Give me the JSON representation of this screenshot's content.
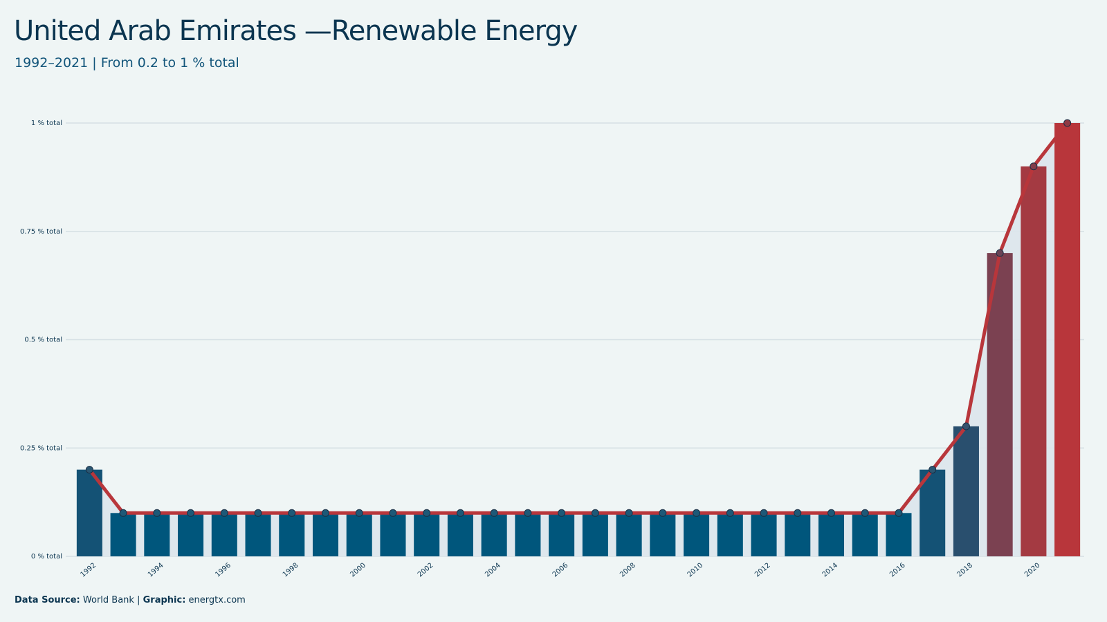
{
  "header": {
    "title": "United Arab Emirates —Renewable Energy",
    "subtitle": "1992–2021 | From 0.2 to 1 % total"
  },
  "footer": {
    "source_label": "Data Source:",
    "source_value": "World Bank",
    "separator": "|",
    "graphic_label": "Graphic:",
    "graphic_value": "energtx.com"
  },
  "colors": {
    "background": "#eff5f5",
    "bar_base": "#00567c",
    "bar_high": "#b8363b",
    "line": "#b8363b",
    "marker": "#1d5978",
    "grid": "#d6e0e4",
    "band": "#dce6ec"
  },
  "chart_data": {
    "type": "bar",
    "x": [
      1992,
      1993,
      1994,
      1995,
      1996,
      1997,
      1998,
      1999,
      2000,
      2001,
      2002,
      2003,
      2004,
      2005,
      2006,
      2007,
      2008,
      2009,
      2010,
      2011,
      2012,
      2013,
      2014,
      2015,
      2016,
      2017,
      2018,
      2019,
      2020,
      2021
    ],
    "values": [
      0.2,
      0.1,
      0.1,
      0.1,
      0.1,
      0.1,
      0.1,
      0.1,
      0.1,
      0.1,
      0.1,
      0.1,
      0.1,
      0.1,
      0.1,
      0.1,
      0.1,
      0.1,
      0.1,
      0.1,
      0.1,
      0.1,
      0.1,
      0.1,
      0.1,
      0.2,
      0.3,
      0.7,
      0.9,
      1.0
    ],
    "x_tick_labels": [
      "1992",
      "1994",
      "1996",
      "1998",
      "2000",
      "2002",
      "2004",
      "2006",
      "2008",
      "2010",
      "2012",
      "2014",
      "2016",
      "2018",
      "2020"
    ],
    "y_ticks": [
      0,
      0.25,
      0.5,
      0.75,
      1
    ],
    "y_tick_labels": [
      "0 % total",
      "0.25 % total",
      "0.5 % total",
      "0.75 % total",
      "1 % total"
    ],
    "ylim": [
      0,
      1
    ],
    "overlay": "line with markers",
    "grid": "horizontal"
  }
}
